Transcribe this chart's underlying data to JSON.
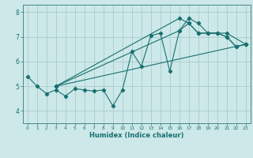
{
  "xlabel": "Humidex (Indice chaleur)",
  "ylabel": "",
  "bg_color": "#cce8e8",
  "grid_color": "#aacccc",
  "line_color": "#1a7070",
  "xlim": [
    -0.5,
    23.5
  ],
  "ylim": [
    3.5,
    8.3
  ],
  "xticks": [
    0,
    1,
    2,
    3,
    4,
    5,
    6,
    7,
    8,
    9,
    10,
    11,
    12,
    13,
    14,
    15,
    16,
    17,
    18,
    19,
    20,
    21,
    22,
    23
  ],
  "yticks": [
    4,
    5,
    6,
    7,
    8
  ],
  "lines": [
    {
      "x": [
        0,
        1,
        2,
        3,
        4,
        5,
        6,
        7,
        8,
        9,
        10,
        11,
        12,
        13,
        14,
        15,
        16,
        17,
        18,
        19,
        20,
        21,
        22,
        23
      ],
      "y": [
        5.4,
        5.0,
        4.7,
        4.85,
        4.6,
        4.9,
        4.85,
        4.8,
        4.85,
        4.2,
        4.85,
        6.4,
        5.8,
        7.05,
        7.15,
        5.6,
        7.25,
        7.75,
        7.55,
        7.15,
        7.15,
        7.0,
        6.6,
        6.7
      ]
    },
    {
      "x": [
        3,
        16,
        17,
        18,
        21,
        23
      ],
      "y": [
        5.0,
        7.75,
        7.55,
        7.15,
        7.15,
        6.7
      ]
    },
    {
      "x": [
        3,
        16,
        17,
        18,
        19,
        20,
        21,
        22,
        23
      ],
      "y": [
        5.0,
        7.25,
        7.55,
        7.15,
        7.15,
        7.15,
        7.0,
        6.6,
        6.7
      ]
    },
    {
      "x": [
        3,
        23
      ],
      "y": [
        5.0,
        6.7
      ]
    }
  ]
}
